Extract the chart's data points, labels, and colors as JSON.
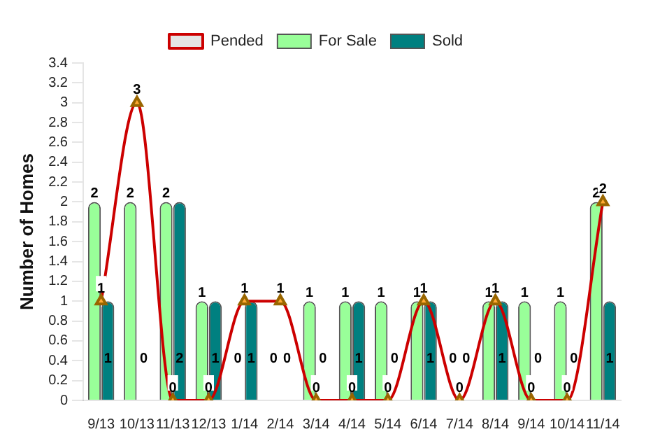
{
  "chart_data": {
    "type": "bar",
    "ylabel": "Number of Homes",
    "categories": [
      "9/13",
      "10/13",
      "11/13",
      "12/13",
      "1/14",
      "2/14",
      "3/14",
      "4/14",
      "5/14",
      "6/14",
      "7/14",
      "8/14",
      "9/14",
      "10/14",
      "11/14"
    ],
    "series": [
      {
        "name": "For Sale",
        "color": "#99ff99",
        "values": [
          2,
          2,
          2,
          1,
          0,
          0,
          1,
          1,
          1,
          1,
          0,
          1,
          1,
          1,
          2
        ]
      },
      {
        "name": "Sold",
        "color": "#008080",
        "values": [
          1,
          0,
          2,
          1,
          1,
          0,
          0,
          1,
          0,
          1,
          0,
          1,
          0,
          0,
          1
        ]
      },
      {
        "name": "Pended",
        "type": "line",
        "color": "#cc0000",
        "marker": "triangle",
        "values": [
          1,
          3,
          0,
          0,
          1,
          1,
          0,
          0,
          0,
          1,
          0,
          1,
          0,
          0,
          2
        ]
      }
    ],
    "ylim": [
      0,
      3.4
    ],
    "yticks": [
      0,
      0.2,
      0.4,
      0.6,
      0.8,
      1,
      1.2,
      1.4,
      1.6,
      1.8,
      2,
      2.2,
      2.4,
      2.6,
      2.8,
      3,
      3.2,
      3.4
    ],
    "grid": false,
    "legend": "top",
    "data_labels": true
  }
}
